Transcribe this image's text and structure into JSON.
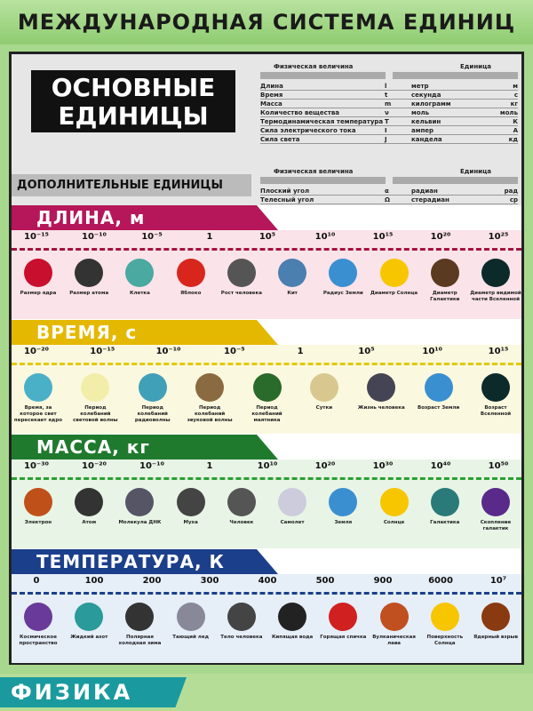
{
  "title": "МЕЖДУНАРОДНАЯ СИСТЕМА ЕДИНИЦ СИ",
  "base_title": "ОСНОВНЫЕ ЕДИНИЦЫ",
  "extra_title": "ДОПОЛНИТЕЛЬНЫЕ ЕДИНИЦЫ",
  "table_headers": {
    "quantity": "Физическая величина",
    "unit": "Единица"
  },
  "base_units": [
    [
      "Длина",
      "l",
      "метр",
      "м"
    ],
    [
      "Время",
      "t",
      "секунда",
      "с"
    ],
    [
      "Масса",
      "m",
      "килограмм",
      "кг"
    ],
    [
      "Количество вещества",
      "ν",
      "моль",
      "моль"
    ],
    [
      "Термодинамическая температура",
      "T",
      "кельвин",
      "К"
    ],
    [
      "Сила электрического тока",
      "I",
      "ампер",
      "А"
    ],
    [
      "Сила света",
      "J",
      "кандела",
      "кд"
    ]
  ],
  "extra_units": [
    [
      "Плоский угол",
      "α",
      "радиан",
      "рад"
    ],
    [
      "Телесный угол",
      "Ω",
      "стерадиан",
      "ср"
    ]
  ],
  "sections": [
    {
      "id": "length",
      "title": "ДЛИНА, м",
      "color": "#b5175a",
      "band": "#fbe3ea",
      "axis": "#a3153f",
      "ticks": [
        "10⁻¹⁵",
        "10⁻¹⁰",
        "10⁻⁵",
        "1",
        "10⁵",
        "10¹⁰",
        "10¹⁵",
        "10²⁰",
        "10²⁵"
      ],
      "items": [
        [
          "Размер ядра",
          "#c8102e"
        ],
        [
          "Размер атома",
          "#333"
        ],
        [
          "Клетка",
          "#4aa9a0"
        ],
        [
          "Яблоко",
          "#d9261c"
        ],
        [
          "Рост человека",
          "#555"
        ],
        [
          "Кит",
          "#4a7fb0"
        ],
        [
          "Радиус Земли",
          "#3a8fd0"
        ],
        [
          "Диаметр Солнца",
          "#f7c600"
        ],
        [
          "Диаметр Галактики",
          "#5a3a20"
        ],
        [
          "Диаметр видимой части Вселенной",
          "#0c2a2a"
        ]
      ]
    },
    {
      "id": "time",
      "title": "ВРЕМЯ, с",
      "color": "#e5b800",
      "band": "#fbf8e0",
      "axis": "#e5c800",
      "ticks": [
        "10⁻²⁰",
        "10⁻¹⁵",
        "10⁻¹⁰",
        "10⁻⁵",
        "1",
        "10⁵",
        "10¹⁰",
        "10¹⁵"
      ],
      "items": [
        [
          "Время, за которое свет пересекает ядро",
          "#4ab0c8"
        ],
        [
          "Период колебаний световой волны",
          "#f2eeaa"
        ],
        [
          "Период колебаний радиоволны",
          "#40a0b8"
        ],
        [
          "Период колебаний звуковой волны",
          "#8a6a40"
        ],
        [
          "Период колебаний маятника",
          "#2a6a2a"
        ],
        [
          "Сутки",
          "#d8c890"
        ],
        [
          "Жизнь человека",
          "#445"
        ],
        [
          "Возраст Земли",
          "#3a8fd0"
        ],
        [
          "Возраст Вселенной",
          "#0c2a2a"
        ]
      ]
    },
    {
      "id": "mass",
      "title": "МАССА, кг",
      "color": "#1f7a2e",
      "band": "#e8f5e6",
      "axis": "#2aa030",
      "ticks": [
        "10⁻³⁰",
        "10⁻²⁰",
        "10⁻¹⁰",
        "1",
        "10¹⁰",
        "10²⁰",
        "10³⁰",
        "10⁴⁰",
        "10⁵⁰"
      ],
      "items": [
        [
          "Электрон",
          "#c0501a"
        ],
        [
          "Атом",
          "#333"
        ],
        [
          "Молекула ДНК",
          "#556"
        ],
        [
          "Муха",
          "#444"
        ],
        [
          "Человек",
          "#555"
        ],
        [
          "Самолет",
          "#ccd"
        ],
        [
          "Земля",
          "#3a8fd0"
        ],
        [
          "Солнце",
          "#f7c600"
        ],
        [
          "Галактика",
          "#2a7a7a"
        ],
        [
          "Скопление галактик",
          "#5a2a8a"
        ]
      ]
    },
    {
      "id": "temperature",
      "title": "ТЕМПЕРАТУРА, К",
      "color": "#1c3f8c",
      "band": "#e6eef8",
      "axis": "#1c3f8c",
      "ticks": [
        "0",
        "100",
        "200",
        "300",
        "400",
        "500",
        "900",
        "6000",
        "10⁷"
      ],
      "items": [
        [
          "Космическое пространство",
          "#6a3a9a"
        ],
        [
          "Жидкий азот",
          "#2a9a9a"
        ],
        [
          "Полярная холодная зима",
          "#333"
        ],
        [
          "Тающий лед",
          "#889"
        ],
        [
          "Тело человека",
          "#444"
        ],
        [
          "Кипящая вода",
          "#222"
        ],
        [
          "Горящая спичка",
          "#d02020"
        ],
        [
          "Вулканическая лава",
          "#c05020"
        ],
        [
          "Поверхность Солнца",
          "#f7c600"
        ],
        [
          "Ядерный взрыв",
          "#8a3a10"
        ]
      ]
    }
  ],
  "footer": {
    "brand": "ФИЗИКА"
  }
}
